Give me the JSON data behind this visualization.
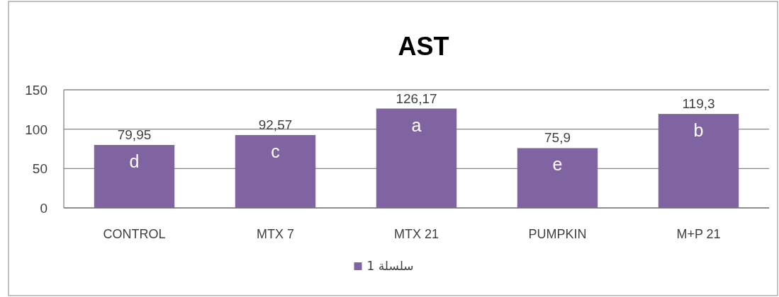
{
  "chart_data": {
    "type": "bar",
    "title": "AST",
    "categories": [
      "CONTROL",
      "MTX 7",
      "MTX 21",
      "PUMPKIN",
      "M+P 21"
    ],
    "series": [
      {
        "name": "سلسلة 1",
        "color": "#8064a2",
        "values": [
          79.95,
          92.57,
          126.17,
          75.9,
          119.3
        ],
        "value_labels": [
          "79,95",
          "92,57",
          "126,17",
          "75,9",
          "119,3"
        ]
      }
    ],
    "ylim": [
      0,
      150
    ],
    "yticks": [
      0,
      50,
      100,
      150
    ],
    "grid": "y",
    "legend": "bottom",
    "annotations": [
      "d",
      "c",
      "a",
      "e",
      "b"
    ]
  }
}
